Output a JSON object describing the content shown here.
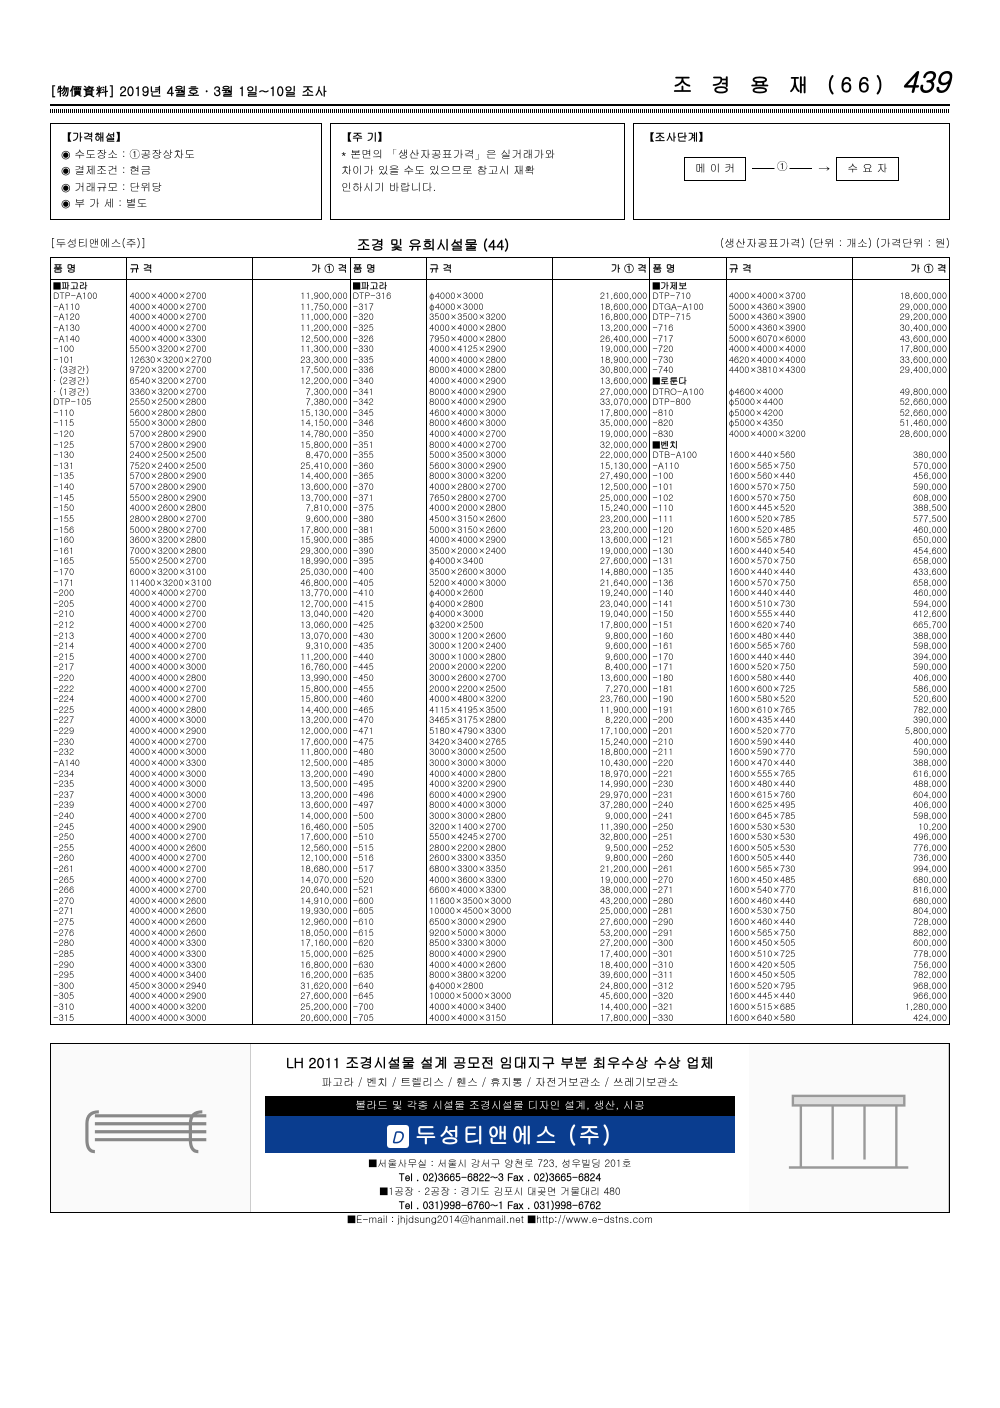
{
  "header": {
    "left": "[物價資料] 2019년 4월호 · 3월 1일~10일 조사",
    "right_title": "조 경 용 재 (66)",
    "page_num": "439"
  },
  "info": {
    "box1_title": "【가격해설】",
    "box1_lines": [
      "◉ 수도장소 : ①공장상차도",
      "◉ 결제조건 : 현금",
      "◉ 거래규모 : 단위당",
      "◉ 부 가 세 : 별도"
    ],
    "box2_title": "【주 기】",
    "box2_lines": [
      "* 본면의 「생산자공표가격」은 실거래가와",
      "  차이가 있을 수도 있으므로 참고시 재확",
      "  인하시기 바랍니다."
    ],
    "box3_title": "【조사단계】",
    "stage_left": "메 이 커",
    "stage_right": "수 요 자"
  },
  "subheader": {
    "company": "[두성티앤에스(주)]",
    "title": "조경 및 유희시설물 (44)",
    "note": "(생산자공표가격) (단위 : 개소) (가격단위 : 원)"
  },
  "columns": [
    "품   명",
    "규        격",
    "가 ① 격",
    "품   명",
    "규        격",
    "가 ① 격",
    "품   명",
    "규        격",
    "가 ① 격"
  ],
  "groups": {
    "g1": "■파고라",
    "g2": "■파고라",
    "g3": "■가제보",
    "g4": "■로툰다",
    "g5": "■벤치"
  },
  "col1": [
    [
      "DTP-A100",
      "4000×4000×2700",
      "11,900,000"
    ],
    [
      "-A110",
      "4000×4000×2700",
      "11,750,000"
    ],
    [
      "-A120",
      "4000×4000×2700",
      "11,000,000"
    ],
    [
      "-A130",
      "4000×4000×2700",
      "11,200,000"
    ],
    [
      "-A140",
      "4000×4000×3300",
      "12,500,000"
    ],
    [
      "-100",
      "5500×3200×2700",
      "11,300,000"
    ],
    [
      "-101",
      "12630×3200×2700",
      "23,300,000"
    ],
    [
      "· (3경간)",
      "9720×3200×2700",
      "17,500,000"
    ],
    [
      "· (2경간)",
      "6540×3200×2700",
      "12,200,000"
    ],
    [
      "· (1경간)",
      "3360×3200×2700",
      "7,300,000"
    ],
    [
      "DTP-105",
      "2550×2500×2800",
      "7,380,000"
    ],
    [
      "-110",
      "5600×2800×2800",
      "15,130,000"
    ],
    [
      "-115",
      "5500×3000×2800",
      "14,150,000"
    ],
    [
      "-120",
      "5700×2800×2900",
      "14,780,000"
    ],
    [
      "-125",
      "5700×2800×2900",
      "15,800,000"
    ],
    [
      "-130",
      "2400×2500×2500",
      "8,470,000"
    ],
    [
      "-131",
      "7520×2400×2500",
      "25,410,000"
    ],
    [
      "-135",
      "5700×2800×2900",
      "14,400,000"
    ],
    [
      "-140",
      "5700×2800×2900",
      "13,600,000"
    ],
    [
      "-145",
      "5500×2800×2900",
      "13,700,000"
    ],
    [
      "-150",
      "4000×2600×2800",
      "7,810,000"
    ],
    [
      "-155",
      "2800×2800×2700",
      "9,600,000"
    ],
    [
      "-156",
      "5000×2800×2700",
      "17,800,000"
    ],
    [
      "-160",
      "3600×3200×2800",
      "15,900,000"
    ],
    [
      "-161",
      "7000×3200×2800",
      "29,300,000"
    ],
    [
      "-165",
      "5500×2500×2700",
      "18,990,000"
    ],
    [
      "-170",
      "6000×3200×3100",
      "25,030,000"
    ],
    [
      "-171",
      "11400×3200×3100",
      "46,800,000"
    ],
    [
      "-200",
      "4000×4000×2700",
      "13,770,000"
    ],
    [
      "-205",
      "4000×4000×2700",
      "12,700,000"
    ],
    [
      "-210",
      "4000×4000×2700",
      "13,040,000"
    ],
    [
      "-212",
      "4000×4000×2700",
      "13,060,000"
    ],
    [
      "-213",
      "4000×4000×2700",
      "13,070,000"
    ],
    [
      "-214",
      "4000×4000×2700",
      "9,310,000"
    ],
    [
      "-215",
      "4000×4000×2700",
      "11,200,000"
    ],
    [
      "-217",
      "4000×4000×3000",
      "16,760,000"
    ],
    [
      "-220",
      "4000×4000×2800",
      "13,990,000"
    ],
    [
      "-222",
      "4000×4000×2700",
      "15,800,000"
    ],
    [
      "-224",
      "4000×4000×2700",
      "15,800,000"
    ],
    [
      "-225",
      "4000×4000×2800",
      "14,400,000"
    ],
    [
      "-227",
      "4000×4000×3000",
      "13,200,000"
    ],
    [
      "-229",
      "4000×4000×2900",
      "12,000,000"
    ],
    [
      "-230",
      "4000×4000×2700",
      "17,600,000"
    ],
    [
      "-232",
      "4000×4000×3000",
      "11,800,000"
    ],
    [
      "-A140",
      "4000×4000×3300",
      "12,500,000"
    ],
    [
      "-234",
      "4000×4000×3000",
      "13,200,000"
    ],
    [
      "-235",
      "4000×4000×3000",
      "13,500,000"
    ],
    [
      "-237",
      "4000×4000×3000",
      "13,200,000"
    ],
    [
      "-239",
      "4000×4000×2700",
      "13,600,000"
    ],
    [
      "-240",
      "4000×4000×2700",
      "14,000,000"
    ],
    [
      "-245",
      "4000×4000×2900",
      "16,460,000"
    ],
    [
      "-250",
      "4000×4000×2700",
      "17,600,000"
    ],
    [
      "-255",
      "4000×4000×2600",
      "12,560,000"
    ],
    [
      "-260",
      "4000×4000×2700",
      "12,100,000"
    ],
    [
      "-261",
      "4000×4000×2700",
      "18,680,000"
    ],
    [
      "-265",
      "4000×4000×2700",
      "14,070,000"
    ],
    [
      "-266",
      "4000×4000×2700",
      "20,640,000"
    ],
    [
      "-270",
      "4000×4000×2600",
      "14,910,000"
    ],
    [
      "-271",
      "4000×4000×2600",
      "19,930,000"
    ],
    [
      "-275",
      "4000×4000×2600",
      "12,960,000"
    ],
    [
      "-276",
      "4000×4000×2600",
      "18,050,000"
    ],
    [
      "-280",
      "4000×4000×3300",
      "17,160,000"
    ],
    [
      "-285",
      "4000×4000×3300",
      "15,000,000"
    ],
    [
      "-290",
      "4000×4000×3300",
      "16,800,000"
    ],
    [
      "-295",
      "4000×4000×3400",
      "16,200,000"
    ],
    [
      "-300",
      "4500×3000×2940",
      "31,620,000"
    ],
    [
      "-305",
      "4000×4000×2900",
      "27,600,000"
    ],
    [
      "-310",
      "4000×4000×3200",
      "25,200,000"
    ],
    [
      "-315",
      "4000×4000×3000",
      "20,600,000"
    ]
  ],
  "col2": [
    [
      "DTP-316",
      "φ4000×3000",
      "21,600,000"
    ],
    [
      "-317",
      "φ4000×3000",
      "18,600,000"
    ],
    [
      "-320",
      "3500×3500×3200",
      "16,800,000"
    ],
    [
      "-325",
      "4000×4000×2800",
      "13,200,000"
    ],
    [
      "-326",
      "7950×4000×2800",
      "26,400,000"
    ],
    [
      "-330",
      "4000×4125×2900",
      "19,000,000"
    ],
    [
      "-335",
      "4000×4000×2800",
      "18,900,000"
    ],
    [
      "-336",
      "8000×4000×2800",
      "30,800,000"
    ],
    [
      "-340",
      "4000×4000×2900",
      "13,600,000"
    ],
    [
      "-341",
      "8000×4000×2900",
      "27,000,000"
    ],
    [
      "-342",
      "8000×4000×2900",
      "33,070,000"
    ],
    [
      "-345",
      "4600×4000×3000",
      "17,800,000"
    ],
    [
      "-346",
      "8000×4600×3000",
      "35,000,000"
    ],
    [
      "-350",
      "4000×4000×2700",
      "19,000,000"
    ],
    [
      "-351",
      "8000×4000×2700",
      "32,000,000"
    ],
    [
      "-355",
      "5000×3500×3000",
      "22,000,000"
    ],
    [
      "-360",
      "5600×3000×2900",
      "15,130,000"
    ],
    [
      "-365",
      "8000×3000×3200",
      "27,490,000"
    ],
    [
      "-370",
      "4000×2800×2700",
      "12,500,000"
    ],
    [
      "-371",
      "7650×2800×2700",
      "25,000,000"
    ],
    [
      "-375",
      "4000×2000×2800",
      "15,240,000"
    ],
    [
      "-380",
      "4500×3150×2600",
      "23,200,000"
    ],
    [
      "-381",
      "5000×3150×2600",
      "23,200,000"
    ],
    [
      "-385",
      "4000×4000×2900",
      "13,600,000"
    ],
    [
      "-390",
      "3500×2000×2400",
      "19,000,000"
    ],
    [
      "-395",
      "φ4000×3400",
      "27,600,000"
    ],
    [
      "-400",
      "3500×2600×3000",
      "14,880,000"
    ],
    [
      "-405",
      "5200×4000×3000",
      "21,640,000"
    ],
    [
      "-410",
      "φ4000×2600",
      "19,240,000"
    ],
    [
      "-415",
      "φ4000×2800",
      "23,040,000"
    ],
    [
      "-420",
      "φ4000×3000",
      "19,040,000"
    ],
    [
      "-425",
      "φ3200×2500",
      "17,800,000"
    ],
    [
      "-430",
      "3000×1200×2600",
      "9,800,000"
    ],
    [
      "-435",
      "3000×1200×2400",
      "9,600,000"
    ],
    [
      "-440",
      "3000×1000×2800",
      "9,600,000"
    ],
    [
      "-445",
      "2000×2000×2200",
      "8,400,000"
    ],
    [
      "-450",
      "3000×2600×2700",
      "13,600,000"
    ],
    [
      "-455",
      "2000×2200×2500",
      "7,270,000"
    ],
    [
      "-460",
      "4000×4800×3200",
      "23,760,000"
    ],
    [
      "-465",
      "4115×4195×3500",
      "11,900,000"
    ],
    [
      "-470",
      "3465×3175×2800",
      "8,220,000"
    ],
    [
      "-471",
      "5180×4790×3300",
      "17,100,000"
    ],
    [
      "-475",
      "3420×3400×2765",
      "15,240,000"
    ],
    [
      "-480",
      "3000×3000×2500",
      "18,800,000"
    ],
    [
      "-485",
      "3000×3000×3000",
      "10,430,000"
    ],
    [
      "-490",
      "4000×4000×2800",
      "18,970,000"
    ],
    [
      "-495",
      "4000×3200×2900",
      "14,990,000"
    ],
    [
      "-496",
      "6000×4000×2900",
      "29,970,000"
    ],
    [
      "-497",
      "8000×4000×3000",
      "37,280,000"
    ],
    [
      "-500",
      "3000×3000×2800",
      "9,000,000"
    ],
    [
      "-505",
      "3200×1400×2700",
      "11,390,000"
    ],
    [
      "-510",
      "5500×4245×2700",
      "32,800,000"
    ],
    [
      "-515",
      "2800×2200×2800",
      "9,500,000"
    ],
    [
      "-516",
      "2600×3300×3350",
      "9,800,000"
    ],
    [
      "-517",
      "6800×3300×3350",
      "21,200,000"
    ],
    [
      "-520",
      "4000×3600×3300",
      "19,000,000"
    ],
    [
      "-521",
      "6600×4000×3300",
      "38,000,000"
    ],
    [
      "-600",
      "11600×3500×3000",
      "43,200,000"
    ],
    [
      "-605",
      "10000×4500×3000",
      "25,000,000"
    ],
    [
      "-610",
      "6500×3000×2900",
      "27,600,000"
    ],
    [
      "-615",
      "9200×5000×3000",
      "53,200,000"
    ],
    [
      "-620",
      "8500×3300×3000",
      "27,200,000"
    ],
    [
      "-625",
      "8000×4000×2900",
      "17,400,000"
    ],
    [
      "-630",
      "4000×4000×2600",
      "18,400,000"
    ],
    [
      "-635",
      "8000×3800×3200",
      "39,600,000"
    ],
    [
      "-640",
      "φ4000×2800",
      "24,800,000"
    ],
    [
      "-645",
      "10000×5000×3000",
      "45,600,000"
    ],
    [
      "-700",
      "4000×4000×3400",
      "14,400,000"
    ],
    [
      "-705",
      "4000×4000×3150",
      "17,800,000"
    ]
  ],
  "col3a": [
    [
      "DTP-710",
      "4000×4000×3700",
      "18,600,000"
    ],
    [
      "DTGA-A100",
      "5000×4360×3900",
      "29,000,000"
    ],
    [
      "DTP-715",
      "5000×4360×3900",
      "29,200,000"
    ],
    [
      "-716",
      "5000×4360×3900",
      "30,400,000"
    ],
    [
      "-717",
      "5000×6070×6000",
      "43,600,000"
    ],
    [
      "-720",
      "4000×4000×4000",
      "17,800,000"
    ],
    [
      "-730",
      "4620×4000×4000",
      "33,600,000"
    ],
    [
      "-740",
      "4400×3810×4300",
      "29,400,000"
    ]
  ],
  "col3b": [
    [
      "DTRO-A100",
      "φ4600×4000",
      "49,800,000"
    ],
    [
      "DTP-800",
      "φ5000×4400",
      "52,660,000"
    ],
    [
      "-810",
      "φ5000×4200",
      "52,660,000"
    ],
    [
      "-820",
      "φ5000×4350",
      "51,460,000"
    ],
    [
      "-830",
      "4000×4000×3200",
      "28,600,000"
    ]
  ],
  "col3c": [
    [
      "DTB-A100",
      "1600×440×560",
      "380,000"
    ],
    [
      "-A110",
      "1600×565×750",
      "570,000"
    ],
    [
      "-100",
      "1600×560×440",
      "456,000"
    ],
    [
      "-101",
      "1600×570×750",
      "590,000"
    ],
    [
      "-102",
      "1600×570×750",
      "608,000"
    ],
    [
      "-110",
      "1600×445×520",
      "388,500"
    ],
    [
      "-111",
      "1600×520×785",
      "577,500"
    ],
    [
      "-120",
      "1600×520×485",
      "460,000"
    ],
    [
      "-121",
      "1600×565×780",
      "650,000"
    ],
    [
      "-130",
      "1600×440×540",
      "454,600"
    ],
    [
      "-131",
      "1600×570×750",
      "658,000"
    ],
    [
      "-135",
      "1600×440×440",
      "433,600"
    ],
    [
      "-136",
      "1600×570×750",
      "658,000"
    ],
    [
      "-140",
      "1600×440×440",
      "460,000"
    ],
    [
      "-141",
      "1600×510×730",
      "594,000"
    ],
    [
      "-150",
      "1600×555×440",
      "412,600"
    ],
    [
      "-151",
      "1600×620×740",
      "665,700"
    ],
    [
      "-160",
      "1600×480×440",
      "388,000"
    ],
    [
      "-161",
      "1600×565×760",
      "598,000"
    ],
    [
      "-170",
      "1600×440×440",
      "394,000"
    ],
    [
      "-171",
      "1600×520×750",
      "590,000"
    ],
    [
      "-180",
      "1600×580×440",
      "406,000"
    ],
    [
      "-181",
      "1600×600×725",
      "586,000"
    ],
    [
      "-190",
      "1600×580×520",
      "520,600"
    ],
    [
      "-191",
      "1600×610×765",
      "782,000"
    ],
    [
      "-200",
      "1600×435×440",
      "390,000"
    ],
    [
      "-201",
      "1600×520×770",
      "5,800,000"
    ],
    [
      "-210",
      "1600×590×440",
      "400,000"
    ],
    [
      "-211",
      "1600×590×770",
      "590,000"
    ],
    [
      "-220",
      "1600×470×440",
      "388,000"
    ],
    [
      "-221",
      "1600×555×765",
      "616,000"
    ],
    [
      "-230",
      "1600×480×440",
      "488,000"
    ],
    [
      "-231",
      "1600×615×760",
      "604,000"
    ],
    [
      "-240",
      "1600×625×495",
      "406,000"
    ],
    [
      "-241",
      "1600×645×785",
      "598,000"
    ],
    [
      "-250",
      "1600×530×530",
      "10,200"
    ],
    [
      "-251",
      "1600×530×530",
      "496,000"
    ],
    [
      "-252",
      "1600×505×530",
      "776,000"
    ],
    [
      "-260",
      "1600×505×440",
      "736,000"
    ],
    [
      "-261",
      "1600×565×730",
      "994,000"
    ],
    [
      "-270",
      "1600×450×485",
      "680,000"
    ],
    [
      "-271",
      "1600×540×770",
      "816,000"
    ],
    [
      "-280",
      "1600×460×440",
      "680,000"
    ],
    [
      "-281",
      "1600×530×750",
      "804,000"
    ],
    [
      "-290",
      "1600×460×440",
      "728,000"
    ],
    [
      "-291",
      "1600×565×750",
      "882,000"
    ],
    [
      "-300",
      "1600×450×505",
      "600,000"
    ],
    [
      "-301",
      "1600×510×725",
      "778,000"
    ],
    [
      "-310",
      "1600×420×505",
      "756,000"
    ],
    [
      "-311",
      "1600×450×505",
      "782,000"
    ],
    [
      "-312",
      "1600×520×795",
      "968,000"
    ],
    [
      "-320",
      "1600×445×440",
      "966,000"
    ],
    [
      "-321",
      "1600×515×685",
      "1,280,000"
    ],
    [
      "-330",
      "1600×640×580",
      "424,000"
    ]
  ],
  "ad": {
    "headline": "LH 2011 조경시설물 설계 공모전 임대지구 부분 최우수상 수상 업체",
    "sub": "파고라 / 벤치 / 트렐리스 / 휀스 / 휴지통 / 자전거보관소 / 쓰레기보관소",
    "black": "볼라드 및 각종 시설물 조경시설물 디자인 설계, 생산, 시공",
    "company": "두성티앤에스 (주)",
    "addr1": "■서울사무실 : 서울시 강서구 양천로 723, 성우빌딩 201호",
    "addr2": "Tel . 02)3665-6822~3  Fax . 02)3665-6824",
    "addr3": "■1공장 · 2공장 : 경기도 김포시 대곶면 거물대리 480",
    "addr4": "Tel . 031)998-6760~1  Fax . 031)998-6762",
    "addr5": "■E-mail : jhjdsung2014@hanmail.net   ■http://www.e-dstns.com"
  }
}
